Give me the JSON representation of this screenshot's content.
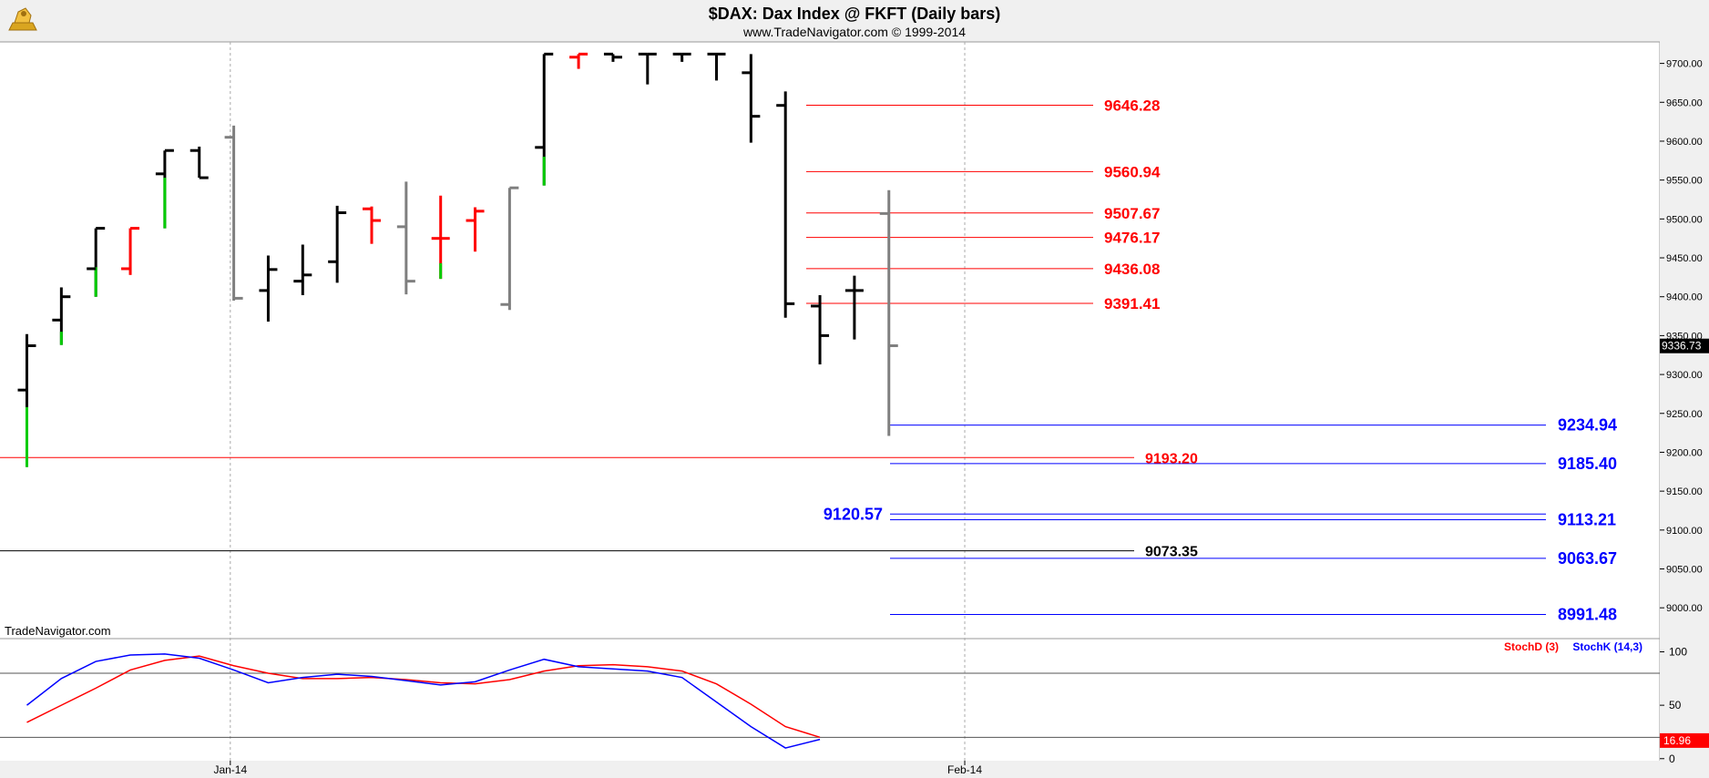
{
  "header": {
    "title": "$DAX:  Dax Index @ FKFT  (Daily bars)",
    "subtitle": "www.TradeNavigator.com © 1999-2014",
    "watermark": "TradeNavigator.com"
  },
  "chart_data": [
    {
      "type": "ohlc",
      "ylim": [
        8940,
        9710
      ],
      "y_ticks": [
        "9700.00",
        "9650.00",
        "9600.00",
        "9550.00",
        "9500.00",
        "9450.00",
        "9400.00",
        "9350.00",
        "9300.00",
        "9250.00",
        "9200.00",
        "9150.00",
        "9100.00",
        "9050.00",
        "9000.00"
      ],
      "y_tick_values": [
        9700,
        9650,
        9600,
        9550,
        9500,
        9450,
        9400,
        9350,
        9300,
        9250,
        9200,
        9150,
        9100,
        9050,
        9000
      ],
      "x_ticks": [
        {
          "label": "Jan-14",
          "index": 5.9
        },
        {
          "label": "Feb-14",
          "index": 27.2
        }
      ],
      "last_price": "9336.73",
      "bar_colors": {
        "k": "#000000",
        "r": "#ff0000",
        "g": "#7f7f7f",
        "G": "#00cc00"
      },
      "bars": [
        {
          "o": 9280,
          "h": 9352,
          "l": 9181,
          "c": 9337,
          "col": "k",
          "green_low": 9258
        },
        {
          "o": 9370,
          "h": 9412,
          "l": 9338,
          "c": 9400,
          "col": "k",
          "green_low": 9355
        },
        {
          "o": 9436,
          "h": 9488,
          "l": 9400,
          "c": 9488,
          "col": "k",
          "green_low": 9438
        },
        {
          "o": 9436,
          "h": 9488,
          "l": 9428,
          "c": 9488,
          "col": "r"
        },
        {
          "o": 9558,
          "h": 9588,
          "l": 9488,
          "c": 9588,
          "col": "k",
          "green_low": 9553
        },
        {
          "o": 9588,
          "h": 9593,
          "l": 9553,
          "c": 9553,
          "col": "k"
        },
        {
          "o": 9605,
          "h": 9620,
          "l": 9395,
          "c": 9398,
          "col": "g"
        },
        {
          "o": 9408,
          "h": 9453,
          "l": 9368,
          "c": 9435,
          "col": "k"
        },
        {
          "o": 9420,
          "h": 9467,
          "l": 9402,
          "c": 9428,
          "col": "k"
        },
        {
          "o": 9445,
          "h": 9517,
          "l": 9418,
          "c": 9508,
          "col": "k"
        },
        {
          "o": 9513,
          "h": 9516,
          "l": 9468,
          "c": 9498,
          "col": "r"
        },
        {
          "o": 9490,
          "h": 9548,
          "l": 9403,
          "c": 9420,
          "col": "g"
        },
        {
          "o": 9475,
          "h": 9530,
          "l": 9423,
          "c": 9475,
          "col": "r",
          "green_low": 9443
        },
        {
          "o": 9498,
          "h": 9515,
          "l": 9458,
          "c": 9510,
          "col": "r"
        },
        {
          "o": 9390,
          "h": 9540,
          "l": 9383,
          "c": 9540,
          "col": "g"
        },
        {
          "o": 9592,
          "h": 9712,
          "l": 9543,
          "c": 9712,
          "col": "k",
          "green_low": 9580
        },
        {
          "o": 9708,
          "h": 9712,
          "l": 9693,
          "c": 9712,
          "col": "r"
        },
        {
          "o": 9712,
          "h": 9712,
          "l": 9702,
          "c": 9708,
          "col": "k"
        },
        {
          "o": 9712,
          "h": 9712,
          "l": 9673,
          "c": 9712,
          "col": "k"
        },
        {
          "o": 9712,
          "h": 9712,
          "l": 9702,
          "c": 9712,
          "col": "k"
        },
        {
          "o": 9712,
          "h": 9712,
          "l": 9678,
          "c": 9712,
          "col": "k"
        },
        {
          "o": 9688,
          "h": 9712,
          "l": 9598,
          "c": 9632,
          "col": "k"
        },
        {
          "o": 9646,
          "h": 9664,
          "l": 9373,
          "c": 9391,
          "col": "k"
        },
        {
          "o": 9388,
          "h": 9402,
          "l": 9313,
          "c": 9350,
          "col": "k"
        },
        {
          "o": 9408,
          "h": 9427,
          "l": 9345,
          "c": 9408,
          "col": "k"
        },
        {
          "o": 9507,
          "h": 9537,
          "l": 9221,
          "c": 9337,
          "col": "g"
        }
      ],
      "levels_red": [
        {
          "value": 9646.28,
          "label": "9646.28"
        },
        {
          "value": 9560.94,
          "label": "9560.94"
        },
        {
          "value": 9507.67,
          "label": "9507.67"
        },
        {
          "value": 9476.17,
          "label": "9476.17"
        },
        {
          "value": 9436.08,
          "label": "9436.08"
        },
        {
          "value": 9391.41,
          "label": "9391.41"
        }
      ],
      "levels_blue": [
        {
          "value": 9234.94,
          "label": "9234.94"
        },
        {
          "value": 9185.4,
          "label": "9185.40"
        },
        {
          "value": 9120.57,
          "label": "9120.57",
          "label_side": "left"
        },
        {
          "value": 9113.21,
          "label": "9113.21"
        },
        {
          "value": 9063.67,
          "label": "9063.67"
        },
        {
          "value": 8991.48,
          "label": "8991.48"
        }
      ],
      "level_long_red": {
        "value": 9193.2,
        "label": "9193.20"
      },
      "level_long_black": {
        "value": 9073.35,
        "label": "9073.35"
      },
      "colors": {
        "red": "#ff0000",
        "blue": "#0000ff",
        "black": "#000000"
      }
    },
    {
      "type": "line",
      "ylim": [
        0,
        108
      ],
      "y_ticks": [
        "100",
        "50",
        "0"
      ],
      "y_tick_values": [
        100,
        50,
        0
      ],
      "ref_lines": [
        80,
        20
      ],
      "last_value": "16.96",
      "series": [
        {
          "name": "StochD (3)",
          "color": "#ff0000",
          "values": [
            34,
            50,
            66,
            83,
            92,
            96,
            87,
            80,
            75,
            75,
            76,
            74,
            71,
            70,
            74,
            82,
            87,
            88,
            86,
            82,
            70,
            51,
            30,
            20
          ]
        },
        {
          "name": "StochK (14,3)",
          "color": "#0000ff",
          "values": [
            50,
            75,
            91,
            97,
            98,
            94,
            83,
            71,
            76,
            79,
            77,
            73,
            69,
            72,
            83,
            93,
            86,
            84,
            82,
            76,
            53,
            30,
            10,
            18
          ]
        }
      ]
    }
  ]
}
